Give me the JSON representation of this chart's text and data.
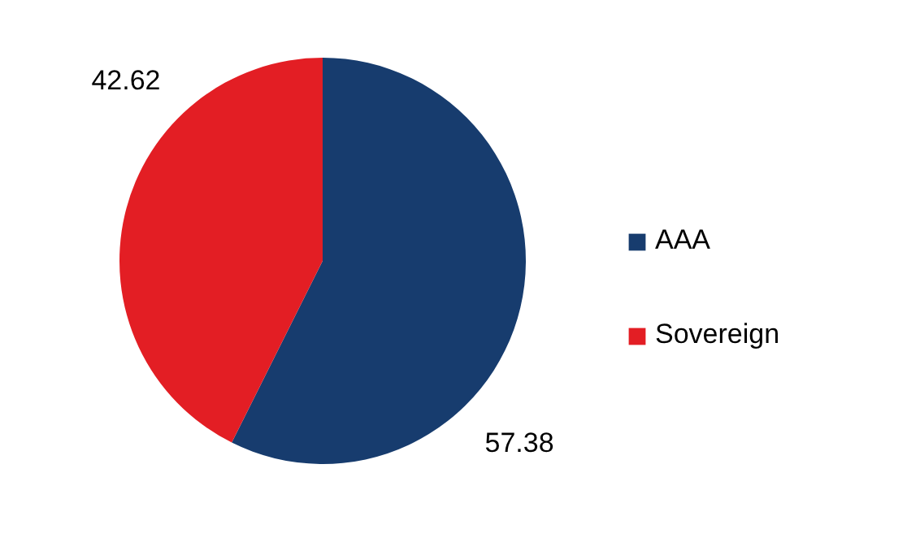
{
  "chart_data": {
    "type": "pie",
    "categories": [
      "AAA",
      "Sovereign"
    ],
    "values": [
      57.38,
      42.62
    ],
    "colors": [
      "#173c6e",
      "#e31e24"
    ],
    "data_labels": true,
    "legend": "right"
  }
}
